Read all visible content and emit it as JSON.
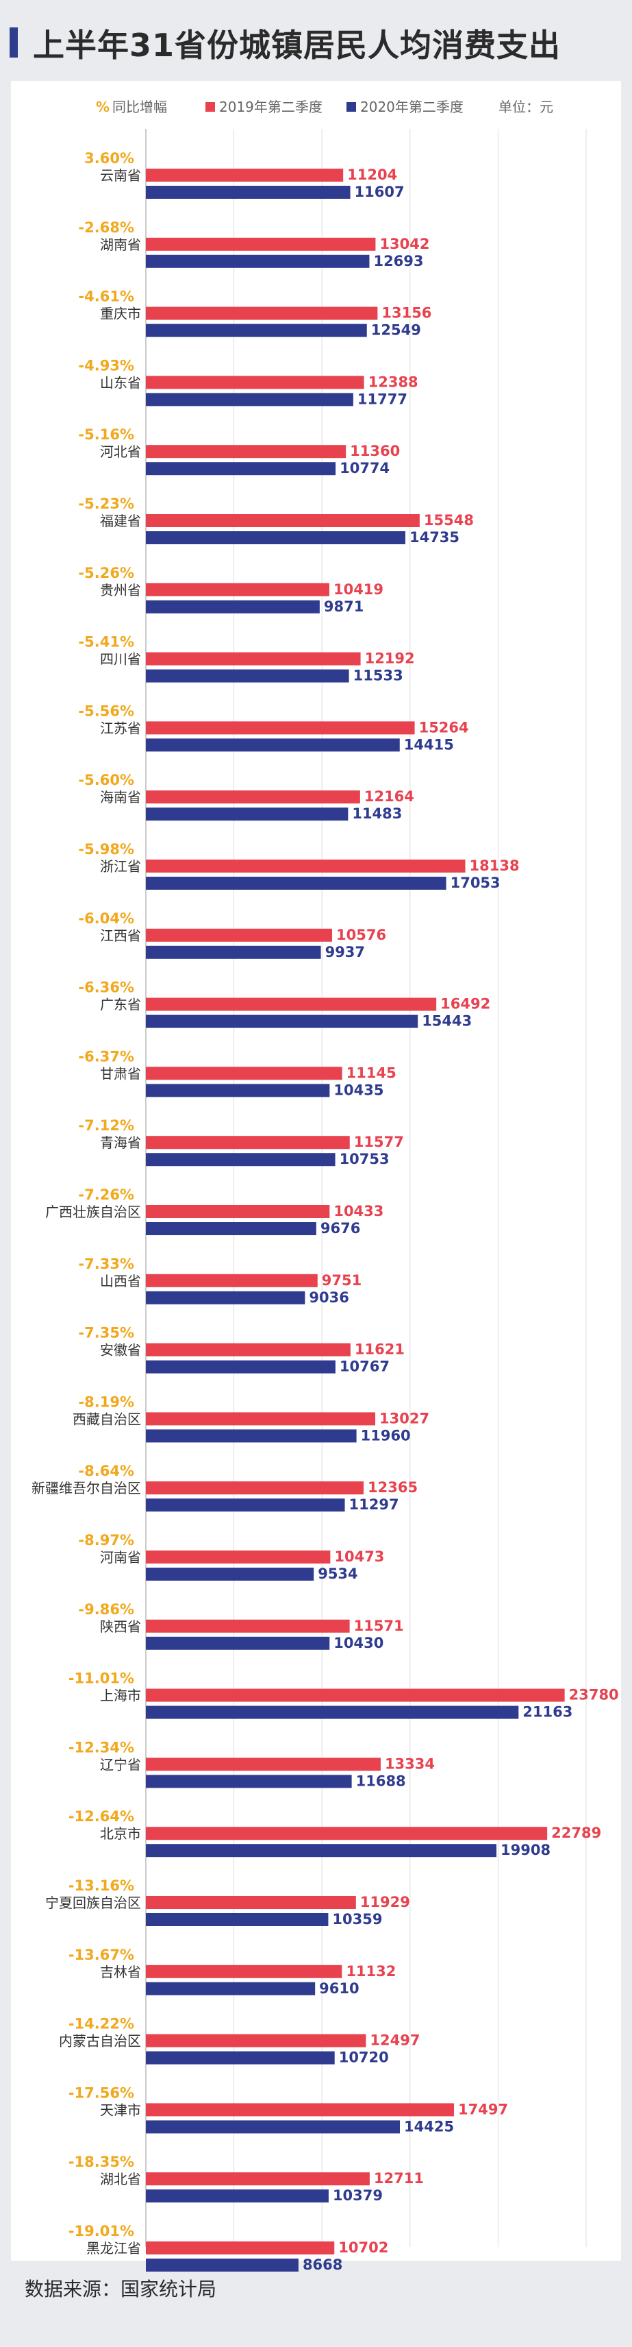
{
  "title": "上半年31省份城镇居民人均消费支出",
  "source": "数据来源：国家统计局",
  "colors": {
    "series_2019": "#e8424f",
    "series_2020": "#2f3b8e",
    "pct": "#f2a81c",
    "label": "#333333",
    "grid": "#dcdcdc",
    "title_accent": "#2f3d8f"
  },
  "legend": {
    "pct_symbol": "%",
    "pct_label": "同比增幅",
    "unit": "单位：元"
  },
  "chart_data": {
    "type": "bar",
    "orientation": "horizontal",
    "title": "上半年31省份城镇居民人均消费支出",
    "unit": "元",
    "categories": [
      "云南省",
      "湖南省",
      "重庆市",
      "山东省",
      "河北省",
      "福建省",
      "贵州省",
      "四川省",
      "江苏省",
      "海南省",
      "浙江省",
      "江西省",
      "广东省",
      "甘肃省",
      "青海省",
      "广西壮族自治区",
      "山西省",
      "安徽省",
      "西藏自治区",
      "新疆维吾尔自治区",
      "河南省",
      "陕西省",
      "上海市",
      "辽宁省",
      "北京市",
      "宁夏回族自治区",
      "吉林省",
      "内蒙古自治区",
      "天津市",
      "湖北省",
      "黑龙江省"
    ],
    "pct_labels": [
      "3.60%",
      "-2.68%",
      "-4.61%",
      "-4.93%",
      "-5.16%",
      "-5.23%",
      "-5.26%",
      "-5.41%",
      "-5.56%",
      "-5.60%",
      "-5.98%",
      "-6.04%",
      "-6.36%",
      "-6.37%",
      "-7.12%",
      "-7.26%",
      "-7.33%",
      "-7.35%",
      "-8.19%",
      "-8.64%",
      "-8.97%",
      "-9.86%",
      "-11.01%",
      "-12.34%",
      "-12.64%",
      "-13.16%",
      "-13.67%",
      "-14.22%",
      "-17.56%",
      "-18.35%",
      "-19.01%"
    ],
    "series": [
      {
        "name": "2019年第二季度",
        "values": [
          11204,
          13042,
          13156,
          12388,
          11360,
          15548,
          10419,
          12192,
          15264,
          12164,
          18138,
          10576,
          16492,
          11145,
          11577,
          10433,
          9751,
          11621,
          13027,
          12365,
          10473,
          11571,
          23780,
          13334,
          22789,
          11929,
          11132,
          12497,
          17497,
          12711,
          10702
        ]
      },
      {
        "name": "2020年第二季度",
        "values": [
          11607,
          12693,
          12549,
          11777,
          10774,
          14735,
          9871,
          11533,
          14415,
          11483,
          17053,
          9937,
          15443,
          10435,
          10753,
          9676,
          9036,
          10767,
          11960,
          11297,
          9534,
          10430,
          21163,
          11688,
          19908,
          10359,
          9610,
          10720,
          14425,
          10379,
          8668
        ]
      }
    ],
    "xlim": [
      0,
      25000
    ],
    "grid": true,
    "legend_position": "top"
  }
}
